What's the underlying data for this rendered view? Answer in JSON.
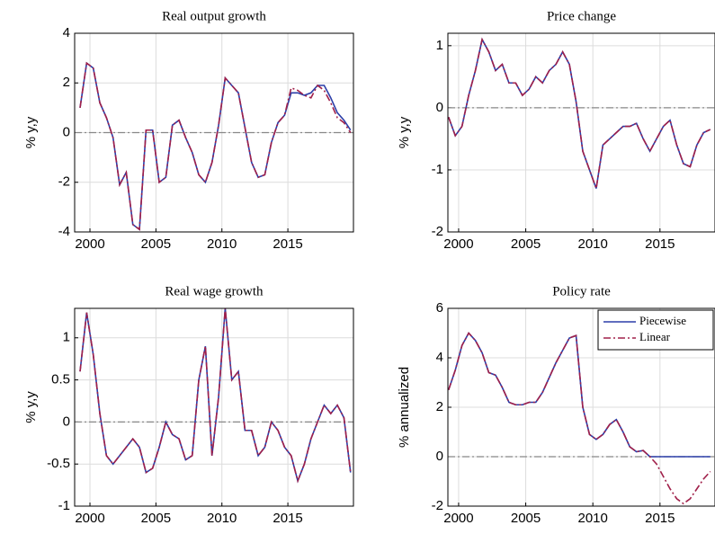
{
  "chart_data": [
    {
      "type": "line",
      "title": "Real output growth",
      "ylabel": "% y,y",
      "x": [
        1999.25,
        1999.75,
        2000.25,
        2000.75,
        2001.25,
        2001.75,
        2002.25,
        2002.75,
        2003.25,
        2003.75,
        2004.25,
        2004.75,
        2005.25,
        2005.75,
        2006.25,
        2006.75,
        2007.25,
        2007.75,
        2008.25,
        2008.75,
        2009.25,
        2009.75,
        2010.25,
        2010.75,
        2011.25,
        2011.75,
        2012.25,
        2012.75,
        2013.25,
        2013.75,
        2014.25,
        2014.75,
        2015.25,
        2015.75,
        2016.25,
        2016.75,
        2017.25,
        2017.75,
        2018.25,
        2018.75,
        2019.25,
        2019.75
      ],
      "series": [
        {
          "color": "#2b3ea8",
          "dash": "solid",
          "values": [
            1.0,
            2.8,
            2.6,
            1.2,
            0.6,
            -0.2,
            -2.1,
            -1.6,
            -3.7,
            -3.9,
            0.1,
            0.1,
            -2.0,
            -1.8,
            0.3,
            0.5,
            -0.2,
            -0.8,
            -1.7,
            -2.0,
            -1.2,
            0.3,
            2.2,
            1.9,
            1.6,
            0.2,
            -1.2,
            -1.8,
            -1.7,
            -0.4,
            0.4,
            0.7,
            1.6,
            1.6,
            1.5,
            1.6,
            1.9,
            1.9,
            1.4,
            0.8,
            0.5,
            0.1
          ]
        },
        {
          "color": "#a0204a",
          "dash": "dashdot",
          "values": [
            1.0,
            2.8,
            2.6,
            1.2,
            0.6,
            -0.2,
            -2.1,
            -1.6,
            -3.7,
            -3.9,
            0.1,
            0.1,
            -2.0,
            -1.8,
            0.3,
            0.5,
            -0.2,
            -0.8,
            -1.7,
            -2.0,
            -1.2,
            0.3,
            2.2,
            1.9,
            1.6,
            0.2,
            -1.2,
            -1.8,
            -1.7,
            -0.4,
            0.4,
            0.7,
            1.8,
            1.7,
            1.5,
            1.4,
            1.9,
            1.7,
            1.2,
            0.6,
            0.4,
            0.0
          ]
        }
      ],
      "xlim": [
        1998.84,
        2019.97
      ],
      "xticks": [
        2000,
        2005,
        2010,
        2015
      ],
      "ylim": [
        -4,
        4
      ],
      "yticks": [
        -4,
        -2,
        0,
        2,
        4
      ],
      "grid": true,
      "zero_line": 0
    },
    {
      "type": "line",
      "title": "Price change",
      "ylabel": "% y,y",
      "x": [
        1999.25,
        1999.75,
        2000.25,
        2000.75,
        2001.25,
        2001.75,
        2002.25,
        2002.75,
        2003.25,
        2003.75,
        2004.25,
        2004.75,
        2005.25,
        2005.75,
        2006.25,
        2006.75,
        2007.25,
        2007.75,
        2008.25,
        2008.75,
        2009.25,
        2009.75,
        2010.25,
        2010.75,
        2011.25,
        2011.75,
        2012.25,
        2012.75,
        2013.25,
        2013.75,
        2014.25,
        2014.75,
        2015.25,
        2015.75,
        2016.25,
        2016.75,
        2017.25,
        2017.75,
        2018.25,
        2018.75
      ],
      "series": [
        {
          "color": "#2b3ea8",
          "dash": "solid",
          "values": [
            -0.15,
            -0.45,
            -0.3,
            0.2,
            0.6,
            1.1,
            0.9,
            0.6,
            0.7,
            0.4,
            0.4,
            0.2,
            0.3,
            0.5,
            0.4,
            0.6,
            0.7,
            0.9,
            0.7,
            0.1,
            -0.7,
            -1.0,
            -1.3,
            -0.6,
            -0.5,
            -0.4,
            -0.3,
            -0.3,
            -0.25,
            -0.5,
            -0.7,
            -0.5,
            -0.3,
            -0.2,
            -0.6,
            -0.9,
            -0.95,
            -0.6,
            -0.4,
            -0.35
          ]
        },
        {
          "color": "#a0204a",
          "dash": "dashdot",
          "values": [
            -0.15,
            -0.45,
            -0.3,
            0.2,
            0.6,
            1.1,
            0.9,
            0.6,
            0.7,
            0.4,
            0.4,
            0.2,
            0.3,
            0.5,
            0.4,
            0.6,
            0.7,
            0.9,
            0.7,
            0.1,
            -0.7,
            -1.0,
            -1.3,
            -0.6,
            -0.5,
            -0.4,
            -0.3,
            -0.3,
            -0.25,
            -0.5,
            -0.7,
            -0.5,
            -0.3,
            -0.2,
            -0.6,
            -0.9,
            -0.95,
            -0.6,
            -0.4,
            -0.35
          ]
        }
      ],
      "xlim": [
        1999.2,
        2019.1
      ],
      "xticks": [
        2000,
        2005,
        2010,
        2015
      ],
      "ylim": [
        -2,
        1.2
      ],
      "yticks": [
        -2,
        -1,
        0,
        1
      ],
      "grid": true,
      "zero_line": 0
    },
    {
      "type": "line",
      "title": "Real wage growth",
      "ylabel": "% y,y",
      "x": [
        1999.25,
        1999.75,
        2000.25,
        2000.75,
        2001.25,
        2001.75,
        2002.25,
        2002.75,
        2003.25,
        2003.75,
        2004.25,
        2004.75,
        2005.25,
        2005.75,
        2006.25,
        2006.75,
        2007.25,
        2007.75,
        2008.25,
        2008.75,
        2009.25,
        2009.75,
        2010.25,
        2010.75,
        2011.25,
        2011.75,
        2012.25,
        2012.75,
        2013.25,
        2013.75,
        2014.25,
        2014.75,
        2015.25,
        2015.75,
        2016.25,
        2016.75,
        2017.25,
        2017.75,
        2018.25,
        2018.75,
        2019.25,
        2019.75
      ],
      "series": [
        {
          "color": "#2b3ea8",
          "dash": "solid",
          "values": [
            0.6,
            1.3,
            0.8,
            0.1,
            -0.4,
            -0.5,
            -0.4,
            -0.3,
            -0.2,
            -0.3,
            -0.6,
            -0.55,
            -0.3,
            0.0,
            -0.15,
            -0.2,
            -0.45,
            -0.4,
            0.5,
            0.9,
            -0.4,
            0.3,
            1.35,
            0.5,
            0.6,
            -0.1,
            -0.1,
            -0.4,
            -0.3,
            0.0,
            -0.1,
            -0.3,
            -0.4,
            -0.7,
            -0.5,
            -0.2,
            0.0,
            0.2,
            0.1,
            0.2,
            0.05,
            -0.6
          ]
        },
        {
          "color": "#a0204a",
          "dash": "dashdot",
          "values": [
            0.6,
            1.3,
            0.8,
            0.1,
            -0.4,
            -0.5,
            -0.4,
            -0.3,
            -0.2,
            -0.3,
            -0.6,
            -0.55,
            -0.3,
            0.0,
            -0.15,
            -0.2,
            -0.45,
            -0.4,
            0.5,
            0.9,
            -0.4,
            0.3,
            1.35,
            0.5,
            0.6,
            -0.1,
            -0.1,
            -0.4,
            -0.3,
            0.0,
            -0.1,
            -0.3,
            -0.4,
            -0.7,
            -0.5,
            -0.2,
            0.0,
            0.2,
            0.1,
            0.2,
            0.05,
            -0.6
          ]
        }
      ],
      "xlim": [
        1998.84,
        2019.97
      ],
      "xticks": [
        2000,
        2005,
        2010,
        2015
      ],
      "ylim": [
        -1,
        1.35
      ],
      "yticks": [
        -1,
        -0.5,
        0,
        0.5,
        1
      ],
      "grid": true,
      "zero_line": 0
    },
    {
      "type": "line",
      "title": "Policy rate",
      "ylabel": "% annualized",
      "x": [
        1999.25,
        1999.75,
        2000.25,
        2000.75,
        2001.25,
        2001.75,
        2002.25,
        2002.75,
        2003.25,
        2003.75,
        2004.25,
        2004.75,
        2005.25,
        2005.75,
        2006.25,
        2006.75,
        2007.25,
        2007.75,
        2008.25,
        2008.75,
        2009.25,
        2009.75,
        2010.25,
        2010.75,
        2011.25,
        2011.75,
        2012.25,
        2012.75,
        2013.25,
        2013.75,
        2014.25,
        2014.75,
        2015.25,
        2015.75,
        2016.25,
        2016.75,
        2017.25,
        2017.75,
        2018.25,
        2018.75
      ],
      "series": [
        {
          "name": "Piecewise",
          "color": "#2b3ea8",
          "dash": "solid",
          "values": [
            2.7,
            3.5,
            4.5,
            5.0,
            4.7,
            4.2,
            3.4,
            3.3,
            2.8,
            2.2,
            2.1,
            2.1,
            2.2,
            2.2,
            2.6,
            3.2,
            3.8,
            4.3,
            4.8,
            4.9,
            2.0,
            0.9,
            0.7,
            0.9,
            1.3,
            1.5,
            1.0,
            0.4,
            0.2,
            0.25,
            0.0,
            0,
            0,
            0,
            0,
            0,
            0,
            0,
            0,
            0
          ]
        },
        {
          "name": "Linear",
          "color": "#a0204a",
          "dash": "dashdot",
          "values": [
            2.7,
            3.5,
            4.5,
            5.0,
            4.7,
            4.2,
            3.4,
            3.3,
            2.8,
            2.2,
            2.1,
            2.1,
            2.2,
            2.2,
            2.6,
            3.2,
            3.8,
            4.3,
            4.8,
            4.9,
            2.0,
            0.9,
            0.7,
            0.9,
            1.3,
            1.5,
            1.0,
            0.4,
            0.2,
            0.25,
            0.0,
            -0.3,
            -0.8,
            -1.3,
            -1.7,
            -1.9,
            -1.7,
            -1.3,
            -0.9,
            -0.6
          ]
        }
      ],
      "xlim": [
        1999.2,
        2019.1
      ],
      "xticks": [
        2000,
        2005,
        2010,
        2015
      ],
      "ylim": [
        -2,
        6
      ],
      "yticks": [
        -2,
        0,
        2,
        4,
        6
      ],
      "grid": true,
      "zero_line": 0,
      "legend": "upper right"
    }
  ]
}
